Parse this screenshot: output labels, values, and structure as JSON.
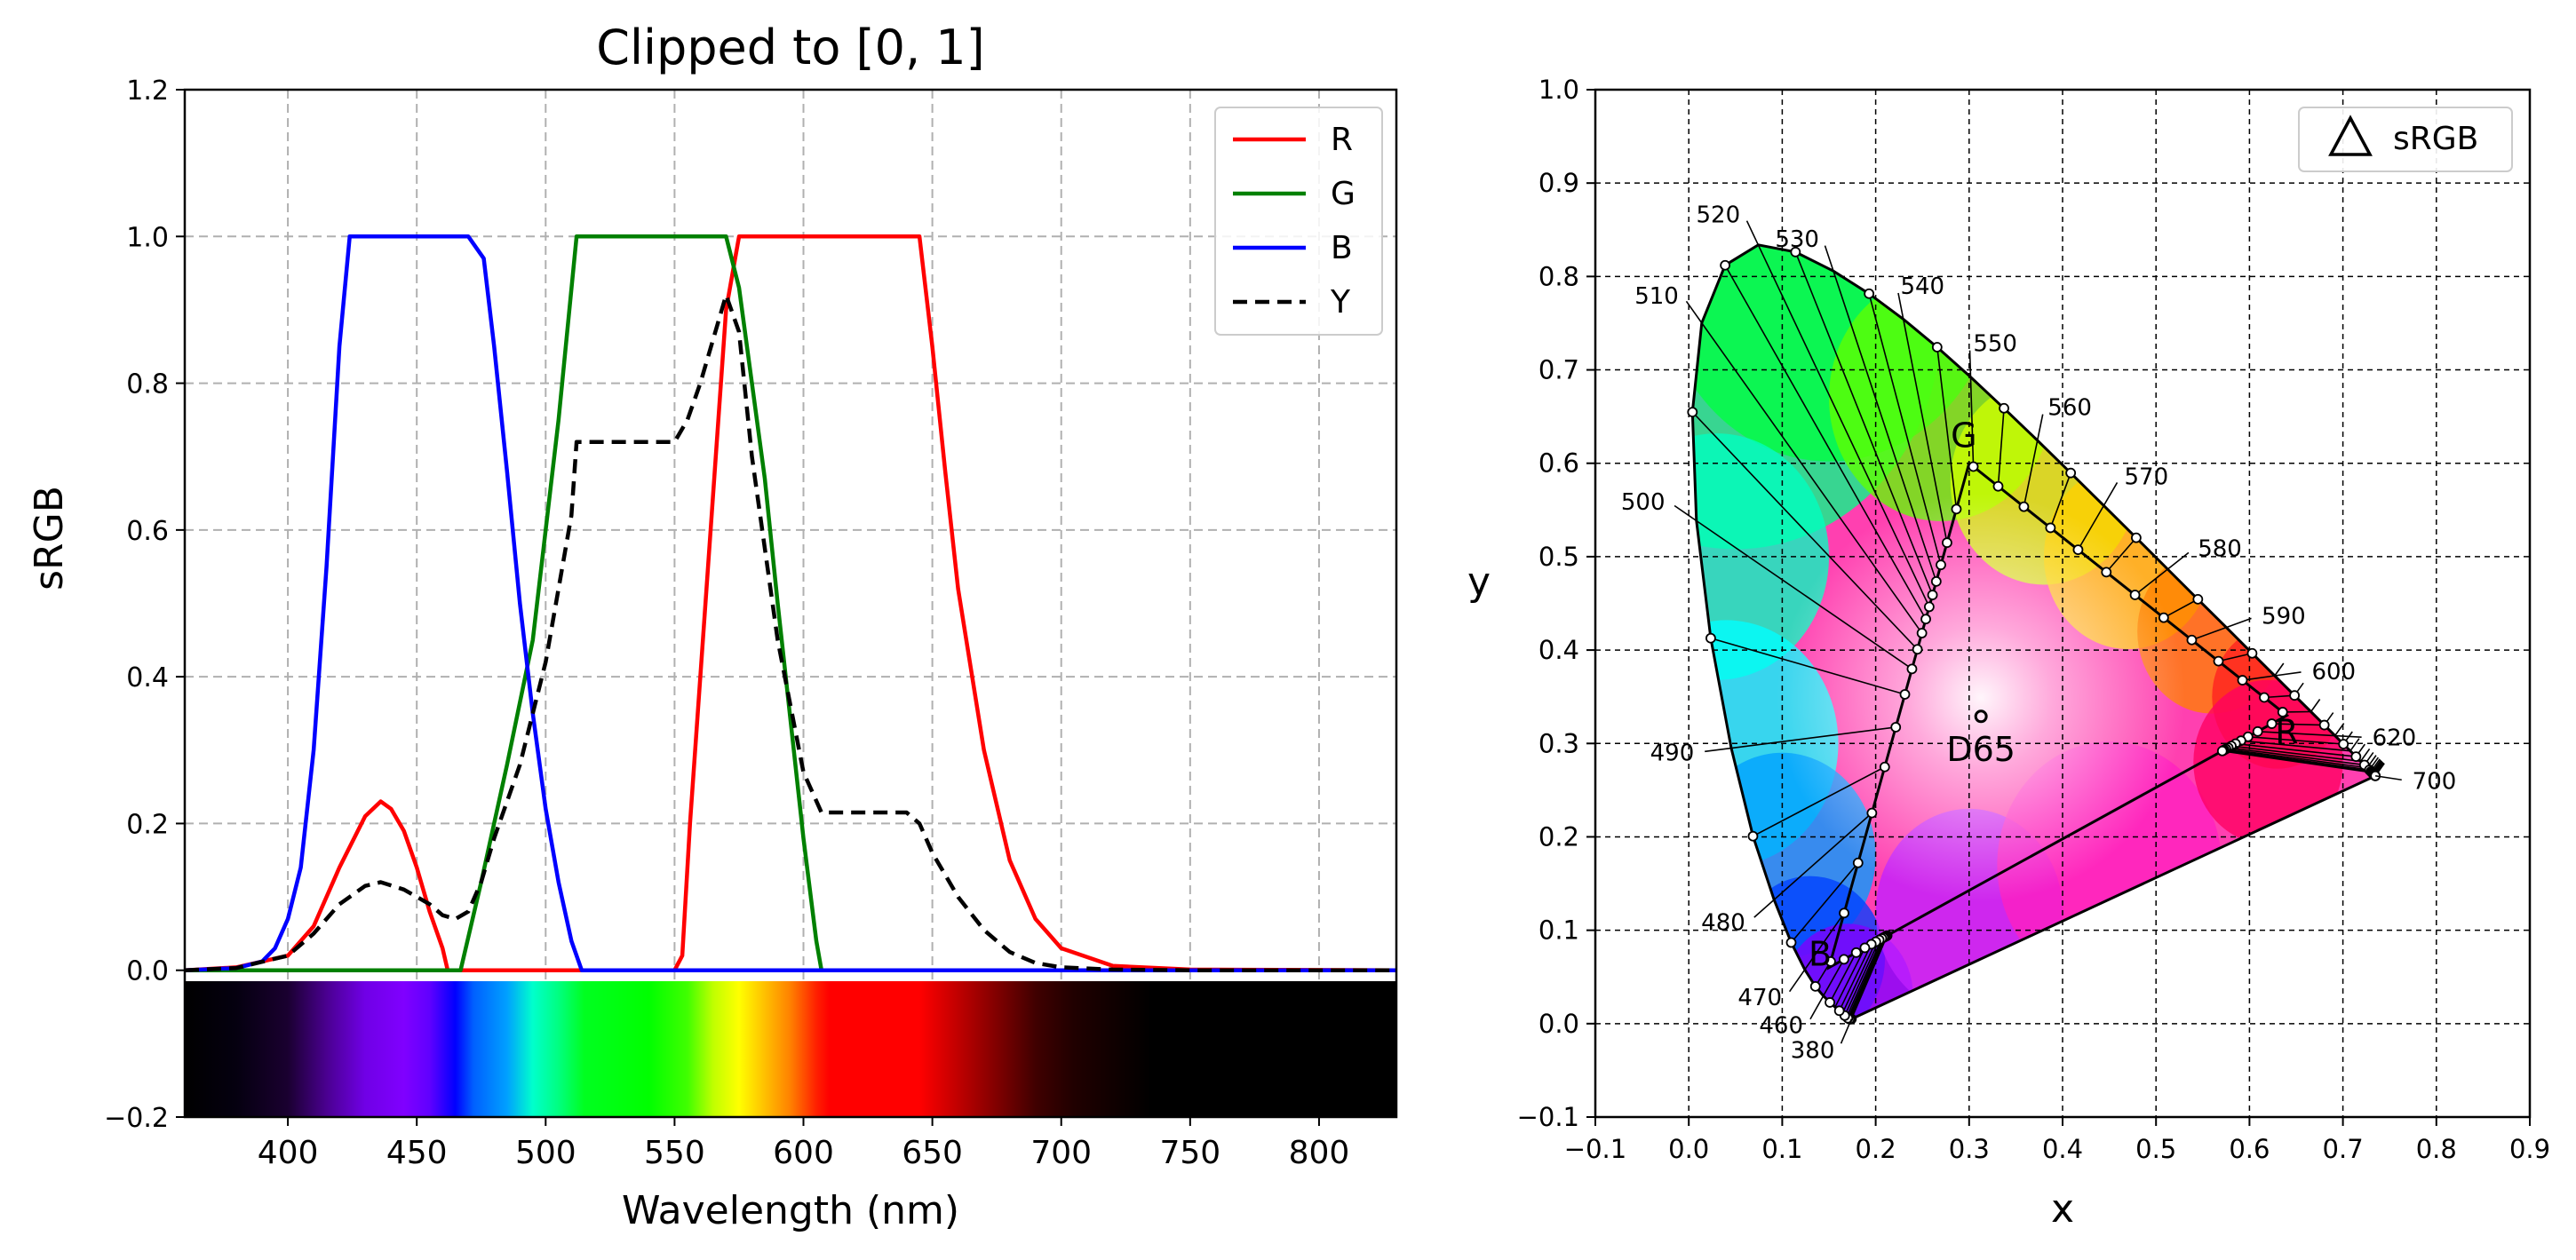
{
  "figure": {
    "panels": 2
  },
  "chart_data": [
    {
      "type": "line",
      "title": "Clipped to [0, 1]",
      "xlabel": "Wavelength (nm)",
      "ylabel": "sRGB",
      "xlim": [
        360,
        830
      ],
      "ylim": [
        -0.2,
        1.2
      ],
      "xticks": [
        400,
        450,
        500,
        550,
        600,
        650,
        700,
        750,
        800
      ],
      "xtick_labels": [
        "400",
        "450",
        "500",
        "550",
        "600",
        "650",
        "700",
        "750",
        "800"
      ],
      "yticks": [
        -0.2,
        0.0,
        0.2,
        0.4,
        0.6,
        0.8,
        1.0,
        1.2
      ],
      "ytick_labels": [
        "−0.2",
        "0.0",
        "0.2",
        "0.4",
        "0.6",
        "0.8",
        "1.0",
        "1.2"
      ],
      "grid": true,
      "legend_position": "top-right",
      "spectrum_band": {
        "y_range": [
          -0.41,
          -0.2
        ],
        "x_range": [
          360,
          830
        ]
      },
      "series": [
        {
          "name": "R",
          "color": "#ff0000",
          "style": "solid",
          "x": [
            360,
            380,
            400,
            410,
            420,
            430,
            436,
            440,
            445,
            450,
            455,
            460,
            462,
            470,
            550,
            553,
            556,
            560,
            565,
            570,
            575,
            600,
            645,
            650,
            655,
            660,
            670,
            680,
            690,
            700,
            720,
            750,
            830
          ],
          "y": [
            0,
            0.004,
            0.02,
            0.06,
            0.14,
            0.21,
            0.23,
            0.22,
            0.19,
            0.14,
            0.08,
            0.03,
            0,
            0,
            0,
            0.02,
            0.2,
            0.4,
            0.65,
            0.9,
            1.0,
            1.0,
            1.0,
            0.85,
            0.68,
            0.52,
            0.3,
            0.15,
            0.07,
            0.03,
            0.006,
            0.001,
            0
          ]
        },
        {
          "name": "G",
          "color": "#008000",
          "style": "solid",
          "x": [
            360,
            467,
            475,
            485,
            495,
            505,
            512,
            570,
            575,
            580,
            585,
            590,
            595,
            600,
            605,
            607,
            830
          ],
          "y": [
            0,
            0,
            0.12,
            0.28,
            0.45,
            0.75,
            1.0,
            1.0,
            0.93,
            0.8,
            0.67,
            0.5,
            0.34,
            0.18,
            0.04,
            0,
            0
          ]
        },
        {
          "name": "B",
          "color": "#0000ff",
          "style": "solid",
          "x": [
            360,
            380,
            390,
            395,
            400,
            405,
            410,
            415,
            420,
            424,
            470,
            476,
            480,
            485,
            490,
            495,
            500,
            505,
            510,
            514,
            830
          ],
          "y": [
            0,
            0.003,
            0.012,
            0.03,
            0.07,
            0.14,
            0.3,
            0.55,
            0.85,
            1.0,
            1.0,
            0.97,
            0.85,
            0.68,
            0.5,
            0.35,
            0.22,
            0.12,
            0.04,
            0,
            0
          ]
        },
        {
          "name": "Y",
          "color": "#000000",
          "style": "dashed",
          "x": [
            360,
            380,
            400,
            410,
            420,
            430,
            436,
            445,
            455,
            460,
            465,
            470,
            475,
            480,
            490,
            500,
            510,
            512,
            550,
            555,
            560,
            565,
            570,
            575,
            580,
            590,
            600,
            607,
            640,
            645,
            650,
            660,
            670,
            680,
            690,
            700,
            720,
            750,
            830
          ],
          "y": [
            0,
            0.003,
            0.02,
            0.05,
            0.09,
            0.115,
            0.12,
            0.11,
            0.09,
            0.075,
            0.07,
            0.08,
            0.12,
            0.18,
            0.28,
            0.42,
            0.62,
            0.72,
            0.72,
            0.75,
            0.8,
            0.86,
            0.92,
            0.87,
            0.7,
            0.45,
            0.27,
            0.215,
            0.215,
            0.2,
            0.16,
            0.1,
            0.055,
            0.025,
            0.01,
            0.004,
            0.001,
            0,
            0
          ]
        }
      ]
    },
    {
      "type": "scatter",
      "title": "",
      "xlabel": "x",
      "ylabel": "y",
      "xlim": [
        -0.1,
        0.9
      ],
      "ylim": [
        -0.1,
        1.0
      ],
      "xticks": [
        -0.1,
        0.0,
        0.1,
        0.2,
        0.3,
        0.4,
        0.5,
        0.6,
        0.7,
        0.8,
        0.9
      ],
      "xtick_labels": [
        "−0.1",
        "0.0",
        "0.1",
        "0.2",
        "0.3",
        "0.4",
        "0.5",
        "0.6",
        "0.7",
        "0.8",
        "0.9"
      ],
      "yticks": [
        -0.1,
        0.0,
        0.1,
        0.2,
        0.3,
        0.4,
        0.5,
        0.6,
        0.7,
        0.8,
        0.9,
        1.0
      ],
      "ytick_labels": [
        "−0.1",
        "0.0",
        "0.1",
        "0.2",
        "0.3",
        "0.4",
        "0.5",
        "0.6",
        "0.7",
        "0.8",
        "0.9",
        "1.0"
      ],
      "grid": true,
      "grid_style": "dashed",
      "legend_position": "top-right",
      "legend": [
        {
          "name": "sRGB",
          "marker": "triangle"
        }
      ],
      "spectral_locus": [
        [
          0.1741,
          0.005
        ],
        [
          0.1738,
          0.0049
        ],
        [
          0.1736,
          0.005
        ],
        [
          0.1733,
          0.0048
        ],
        [
          0.173,
          0.0048
        ],
        [
          0.1726,
          0.0048
        ],
        [
          0.1721,
          0.0048
        ],
        [
          0.1714,
          0.0051
        ],
        [
          0.1703,
          0.0058
        ],
        [
          0.1689,
          0.0069
        ],
        [
          0.1669,
          0.0086
        ],
        [
          0.1644,
          0.0109
        ],
        [
          0.1611,
          0.0138
        ],
        [
          0.1566,
          0.0177
        ],
        [
          0.151,
          0.0227
        ],
        [
          0.144,
          0.0297
        ],
        [
          0.1355,
          0.0399
        ],
        [
          0.1241,
          0.0578
        ],
        [
          0.1096,
          0.0868
        ],
        [
          0.0913,
          0.1327
        ],
        [
          0.0687,
          0.2007
        ],
        [
          0.0454,
          0.295
        ],
        [
          0.0235,
          0.4127
        ],
        [
          0.0082,
          0.5384
        ],
        [
          0.0039,
          0.6548
        ],
        [
          0.0139,
          0.7502
        ],
        [
          0.0389,
          0.812
        ],
        [
          0.0743,
          0.8338
        ],
        [
          0.1142,
          0.8262
        ],
        [
          0.1547,
          0.8059
        ],
        [
          0.1929,
          0.7816
        ],
        [
          0.2296,
          0.7543
        ],
        [
          0.2658,
          0.7243
        ],
        [
          0.3016,
          0.6923
        ],
        [
          0.3373,
          0.6589
        ],
        [
          0.3731,
          0.6245
        ],
        [
          0.4087,
          0.5896
        ],
        [
          0.4441,
          0.5547
        ],
        [
          0.4788,
          0.5202
        ],
        [
          0.5125,
          0.4866
        ],
        [
          0.5448,
          0.4544
        ],
        [
          0.5752,
          0.4242
        ],
        [
          0.6029,
          0.3965
        ],
        [
          0.627,
          0.3725
        ],
        [
          0.6482,
          0.3514
        ],
        [
          0.6658,
          0.334
        ],
        [
          0.6801,
          0.3197
        ],
        [
          0.6915,
          0.3083
        ],
        [
          0.7006,
          0.2993
        ],
        [
          0.7079,
          0.292
        ],
        [
          0.714,
          0.2859
        ],
        [
          0.719,
          0.2809
        ],
        [
          0.723,
          0.277
        ],
        [
          0.726,
          0.274
        ],
        [
          0.7283,
          0.2717
        ],
        [
          0.73,
          0.27
        ],
        [
          0.7311,
          0.2689
        ],
        [
          0.732,
          0.268
        ],
        [
          0.7327,
          0.2673
        ],
        [
          0.7334,
          0.2666
        ],
        [
          0.734,
          0.266
        ],
        [
          0.7344,
          0.2656
        ],
        [
          0.7346,
          0.2654
        ],
        [
          0.7347,
          0.2653
        ],
        [
          0.7347,
          0.2653
        ]
      ],
      "gamut": {
        "R": [
          0.64,
          0.33
        ],
        "G": [
          0.3,
          0.6
        ],
        "B": [
          0.15,
          0.06
        ],
        "labels": [
          "R",
          "G",
          "B"
        ]
      },
      "whitepoint": {
        "label": "D65",
        "x": 0.3127,
        "y": 0.329
      },
      "wavelength_labels": [
        {
          "text": "380",
          "wl": 380
        },
        {
          "text": "460",
          "wl": 460
        },
        {
          "text": "470",
          "wl": 470
        },
        {
          "text": "480",
          "wl": 480
        },
        {
          "text": "490",
          "wl": 490
        },
        {
          "text": "500",
          "wl": 500
        },
        {
          "text": "510",
          "wl": 510
        },
        {
          "text": "520",
          "wl": 520
        },
        {
          "text": "530",
          "wl": 530
        },
        {
          "text": "540",
          "wl": 540
        },
        {
          "text": "550",
          "wl": 550
        },
        {
          "text": "560",
          "wl": 560
        },
        {
          "text": "570",
          "wl": 570
        },
        {
          "text": "580",
          "wl": 580
        },
        {
          "text": "590",
          "wl": 590
        },
        {
          "text": "600",
          "wl": 600
        },
        {
          "text": "620",
          "wl": 620
        },
        {
          "text": "700",
          "wl": 700
        }
      ]
    }
  ]
}
